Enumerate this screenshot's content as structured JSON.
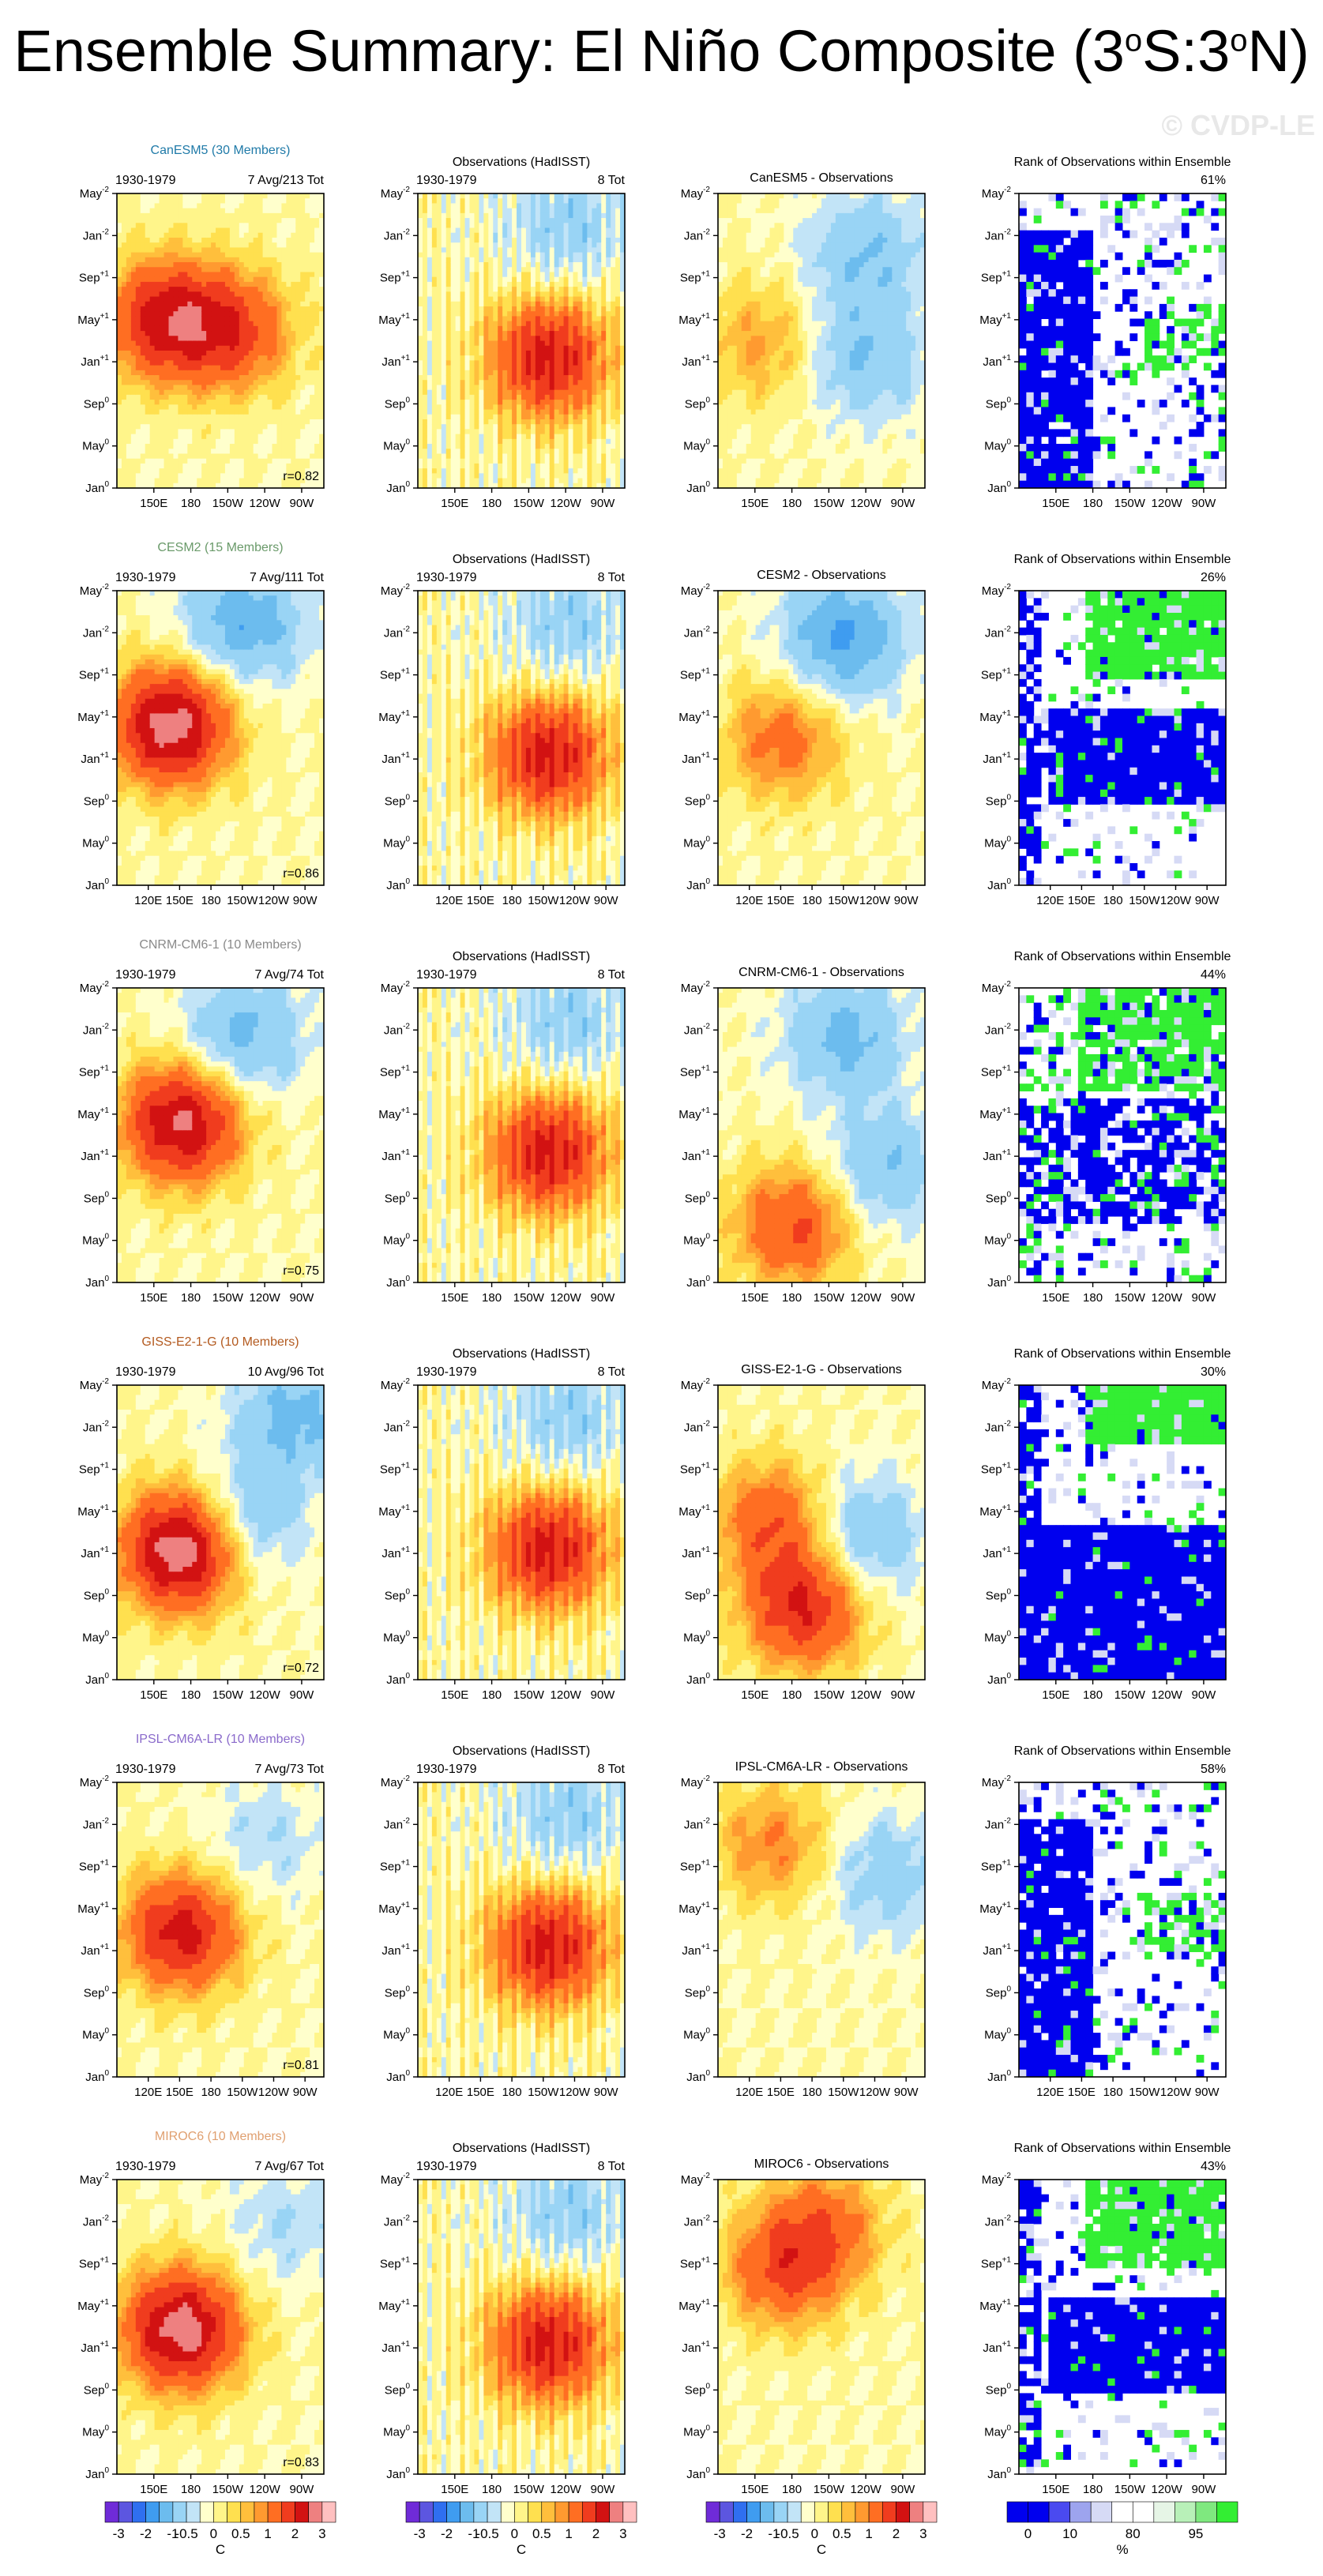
{
  "title": "Ensemble Summary: El Niño Composite (3",
  "title_parts": [
    "Ensemble Summary: El Niño Composite (3",
    "o",
    "S:3",
    "o",
    "N)"
  ],
  "watermark": "© CVDP-LE",
  "colors": {
    "model_names": [
      "#1f7aa8",
      "#6a9a6a",
      "#8a8a8a",
      "#b35a1f",
      "#8a6acb",
      "#e0a070"
    ],
    "rank_low": "#0000ee",
    "rank_mid": "#d6daf5",
    "rank_high": "#33ee33"
  },
  "y_ticks": [
    {
      "label": "May",
      "sup": "-2"
    },
    {
      "label": "Jan",
      "sup": "-2"
    },
    {
      "label": "Sep",
      "sup": "+1"
    },
    {
      "label": "May",
      "sup": "+1"
    },
    {
      "label": "Jan",
      "sup": "+1"
    },
    {
      "label": "Sep",
      "sup": "0"
    },
    {
      "label": "May",
      "sup": "0"
    },
    {
      "label": "Jan",
      "sup": "0"
    }
  ],
  "rows": [
    {
      "model": "CanESM5 (30 Members)",
      "short": "CanESM5",
      "period": "1930-1979",
      "avg": "7 Avg/213 Tot",
      "r": "r=0.82",
      "rank": "61%",
      "x_ticks": [
        "150E",
        "180",
        "150W",
        "120W",
        "90W"
      ],
      "model_ctr": [
        [
          0.22,
          0.42,
          2.2
        ],
        [
          0.55,
          0.46,
          1.6
        ]
      ],
      "diff_ctr": [
        [
          0.2,
          0.5,
          0.8
        ],
        [
          0.7,
          0.55,
          -1.0
        ],
        [
          0.7,
          0.2,
          -1.0
        ]
      ],
      "rank_pattern": "low_west"
    },
    {
      "model": "CESM2 (15 Members)",
      "short": "CESM2",
      "period": "1930-1979",
      "avg": "7 Avg/111 Tot",
      "r": "r=0.86",
      "rank": "26%",
      "x_ticks": [
        "120E",
        "150E",
        "180",
        "150W",
        "120W",
        "90W"
      ],
      "model_ctr": [
        [
          0.25,
          0.45,
          2.8
        ],
        [
          0.6,
          0.1,
          -1.4
        ]
      ],
      "diff_ctr": [
        [
          0.3,
          0.5,
          1.2
        ],
        [
          0.6,
          0.15,
          -1.6
        ]
      ],
      "rank_pattern": "low_center"
    },
    {
      "model": "CNRM-CM6-1 (10 Members)",
      "short": "CNRM-CM6-1",
      "period": "1930-1979",
      "avg": "7 Avg/74 Tot",
      "r": "r=0.75",
      "rank": "44%",
      "x_ticks": [
        "150E",
        "180",
        "150W",
        "120W",
        "90W"
      ],
      "model_ctr": [
        [
          0.3,
          0.45,
          2.6
        ],
        [
          0.6,
          0.15,
          -1.2
        ]
      ],
      "diff_ctr": [
        [
          0.35,
          0.8,
          1.6
        ],
        [
          0.6,
          0.15,
          -1.2
        ],
        [
          0.8,
          0.6,
          -1.0
        ]
      ],
      "rank_pattern": "mixed"
    },
    {
      "model": "GISS-E2-1-G (10 Members)",
      "short": "GISS-E2-1-G",
      "period": "1930-1979",
      "avg": "10 Avg/96 Tot",
      "r": "r=0.72",
      "rank": "30%",
      "x_ticks": [
        "150E",
        "180",
        "150W",
        "120W",
        "90W"
      ],
      "model_ctr": [
        [
          0.3,
          0.55,
          3.0
        ],
        [
          0.85,
          0.1,
          -1.2
        ],
        [
          0.6,
          0.45,
          -1.0
        ]
      ],
      "diff_ctr": [
        [
          0.4,
          0.75,
          2.0
        ],
        [
          0.25,
          0.45,
          1.4
        ],
        [
          0.7,
          0.5,
          -1.0
        ]
      ],
      "rank_pattern": "low_lower"
    },
    {
      "model": "IPSL-CM6A-LR (10 Members)",
      "short": "IPSL-CM6A-LR",
      "period": "1930-1979",
      "avg": "7 Avg/73 Tot",
      "r": "r=0.81",
      "rank": "58%",
      "x_ticks": [
        "120E",
        "150E",
        "180",
        "150W",
        "120W",
        "90W"
      ],
      "model_ctr": [
        [
          0.3,
          0.5,
          2.2
        ],
        [
          0.7,
          0.2,
          -0.5
        ]
      ],
      "diff_ctr": [
        [
          0.25,
          0.2,
          1.0
        ],
        [
          0.8,
          0.3,
          -0.8
        ]
      ],
      "rank_pattern": "low_west"
    },
    {
      "model": "MIROC6 (10 Members)",
      "short": "MIROC6",
      "period": "1930-1979",
      "avg": "7 Avg/67 Tot",
      "r": "r=0.83",
      "rank": "43%",
      "x_ticks": [
        "150E",
        "180",
        "150W",
        "120W",
        "90W"
      ],
      "model_ctr": [
        [
          0.3,
          0.5,
          2.8
        ],
        [
          0.8,
          0.15,
          -0.5
        ]
      ],
      "diff_ctr": [
        [
          0.3,
          0.3,
          1.4
        ],
        [
          0.5,
          0.15,
          1.2
        ]
      ],
      "rank_pattern": "low_center"
    }
  ],
  "obs_label": "Observations (HadISST)",
  "obs_tot": "8 Tot",
  "diff_suffix": " - Observations",
  "rank_title": "Rank of Observations within Ensemble",
  "sst_levels": [
    -3,
    -2.5,
    -2,
    -1.5,
    -1,
    -0.5,
    -0.25,
    0,
    0.25,
    0.5,
    0.75,
    1,
    1.5,
    2,
    2.5,
    3
  ],
  "sst_colors": [
    "#6f2bd8",
    "#5c56e0",
    "#2f6ff0",
    "#3f9cf0",
    "#6cbcee",
    "#99d4f5",
    "#c2e4f7",
    "#ffffcc",
    "#fff58a",
    "#ffe04f",
    "#ffbf3c",
    "#ff9a30",
    "#ff6e22",
    "#f03c1e",
    "#d21212",
    "#ee8080",
    "#ffc0c0"
  ],
  "colorbars": [
    {
      "labels": [
        "-3",
        "-2",
        "-1",
        "-0.5",
        "0",
        "0.5",
        "1",
        "2",
        "3"
      ],
      "unit": "C"
    },
    {
      "labels": [
        "-3",
        "-2",
        "-1",
        "-0.5",
        "0",
        "0.5",
        "1",
        "2",
        "3"
      ],
      "unit": "C"
    },
    {
      "labels": [
        "-3",
        "-2",
        "-1",
        "-0.5",
        "0",
        "0.5",
        "1",
        "2",
        "3"
      ],
      "unit": "C"
    },
    {
      "labels": [
        "0",
        "10",
        "80",
        "95"
      ],
      "unit": "%"
    }
  ],
  "chart_data": [
    {
      "type": "heatmap",
      "title": "CanESM5 (30 Members)",
      "subtitle": "1930-1979",
      "annotation": "r=0.82",
      "x_ticks": [
        "150E",
        "180",
        "150W",
        "120W",
        "90W"
      ],
      "y_ticks": [
        "May-2",
        "Jan-2",
        "Sep+1",
        "May+1",
        "Jan+1",
        "Sep0",
        "May0",
        "Jan0"
      ],
      "colorbar_unit": "C"
    },
    {
      "type": "heatmap",
      "title": "Observations (HadISST)",
      "subtitle": "1930-1979",
      "annotation": "8 Tot",
      "colorbar_unit": "C"
    },
    {
      "type": "heatmap",
      "title": "Rank of Observations within Ensemble",
      "colorbar_levels": [
        0,
        10,
        80,
        95
      ],
      "colorbar_unit": "%"
    }
  ]
}
